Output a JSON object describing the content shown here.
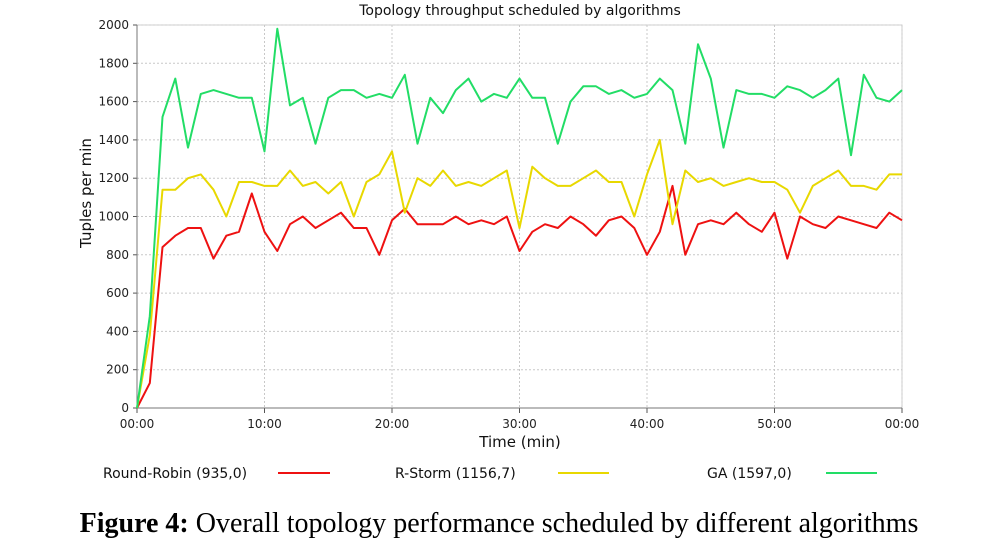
{
  "caption": {
    "label": "Figure 4:",
    "text": " Overall topology performance scheduled by different algorithms"
  },
  "chart_data": {
    "type": "line",
    "title": "Topology throughput scheduled by algorithms",
    "xlabel": "Time (min)",
    "ylabel": "Tuples per min",
    "xlim": [
      0,
      60
    ],
    "ylim": [
      0,
      2000
    ],
    "x_tick_labels": [
      "00:00",
      "10:00",
      "20:00",
      "30:00",
      "40:00",
      "50:00",
      "00:00"
    ],
    "y_ticks": [
      0,
      200,
      400,
      600,
      800,
      1000,
      1200,
      1400,
      1600,
      1800,
      2000
    ],
    "grid": true,
    "legend_position": "bottom",
    "x": [
      0,
      1,
      2,
      3,
      4,
      5,
      6,
      7,
      8,
      9,
      10,
      11,
      12,
      13,
      14,
      15,
      16,
      17,
      18,
      19,
      20,
      21,
      22,
      23,
      24,
      25,
      26,
      27,
      28,
      29,
      30,
      31,
      32,
      33,
      34,
      35,
      36,
      37,
      38,
      39,
      40,
      41,
      42,
      43,
      44,
      45,
      46,
      47,
      48,
      49,
      50,
      51,
      52,
      53,
      54,
      55,
      56,
      57,
      58,
      59,
      60
    ],
    "series": [
      {
        "name": "Round-Robin (935,0)",
        "color": "#ee1111",
        "values": [
          0,
          130,
          840,
          900,
          940,
          940,
          780,
          900,
          920,
          1120,
          920,
          820,
          960,
          1000,
          940,
          980,
          1020,
          940,
          940,
          800,
          980,
          1040,
          960,
          960,
          960,
          1000,
          960,
          980,
          960,
          1000,
          820,
          920,
          960,
          940,
          1000,
          960,
          900,
          980,
          1000,
          940,
          800,
          920,
          1160,
          800,
          960,
          980,
          960,
          1020,
          960,
          920,
          1020,
          780,
          1000,
          960,
          940,
          1000,
          980,
          960,
          940,
          1020,
          980
        ]
      },
      {
        "name": "R-Storm (1156,7)",
        "color": "#e8d800",
        "values": [
          0,
          380,
          1140,
          1140,
          1200,
          1220,
          1140,
          1000,
          1180,
          1180,
          1160,
          1160,
          1240,
          1160,
          1180,
          1120,
          1180,
          1000,
          1180,
          1220,
          1340,
          1020,
          1200,
          1160,
          1240,
          1160,
          1180,
          1160,
          1200,
          1240,
          940,
          1260,
          1200,
          1160,
          1160,
          1200,
          1240,
          1180,
          1180,
          1000,
          1220,
          1400,
          960,
          1240,
          1180,
          1200,
          1160,
          1180,
          1200,
          1180,
          1180,
          1140,
          1020,
          1160,
          1200,
          1240,
          1160,
          1160,
          1140,
          1220,
          1220
        ]
      },
      {
        "name": "GA (1597,0)",
        "color": "#22dd66",
        "values": [
          0,
          480,
          1520,
          1720,
          1360,
          1640,
          1660,
          1640,
          1620,
          1620,
          1340,
          1980,
          1580,
          1620,
          1380,
          1620,
          1660,
          1660,
          1620,
          1640,
          1620,
          1740,
          1380,
          1620,
          1540,
          1660,
          1720,
          1600,
          1640,
          1620,
          1720,
          1620,
          1620,
          1380,
          1600,
          1680,
          1680,
          1640,
          1660,
          1620,
          1640,
          1720,
          1660,
          1380,
          1900,
          1720,
          1360,
          1660,
          1640,
          1640,
          1620,
          1680,
          1660,
          1620,
          1660,
          1720,
          1320,
          1740,
          1620,
          1600,
          1660
        ]
      }
    ]
  }
}
